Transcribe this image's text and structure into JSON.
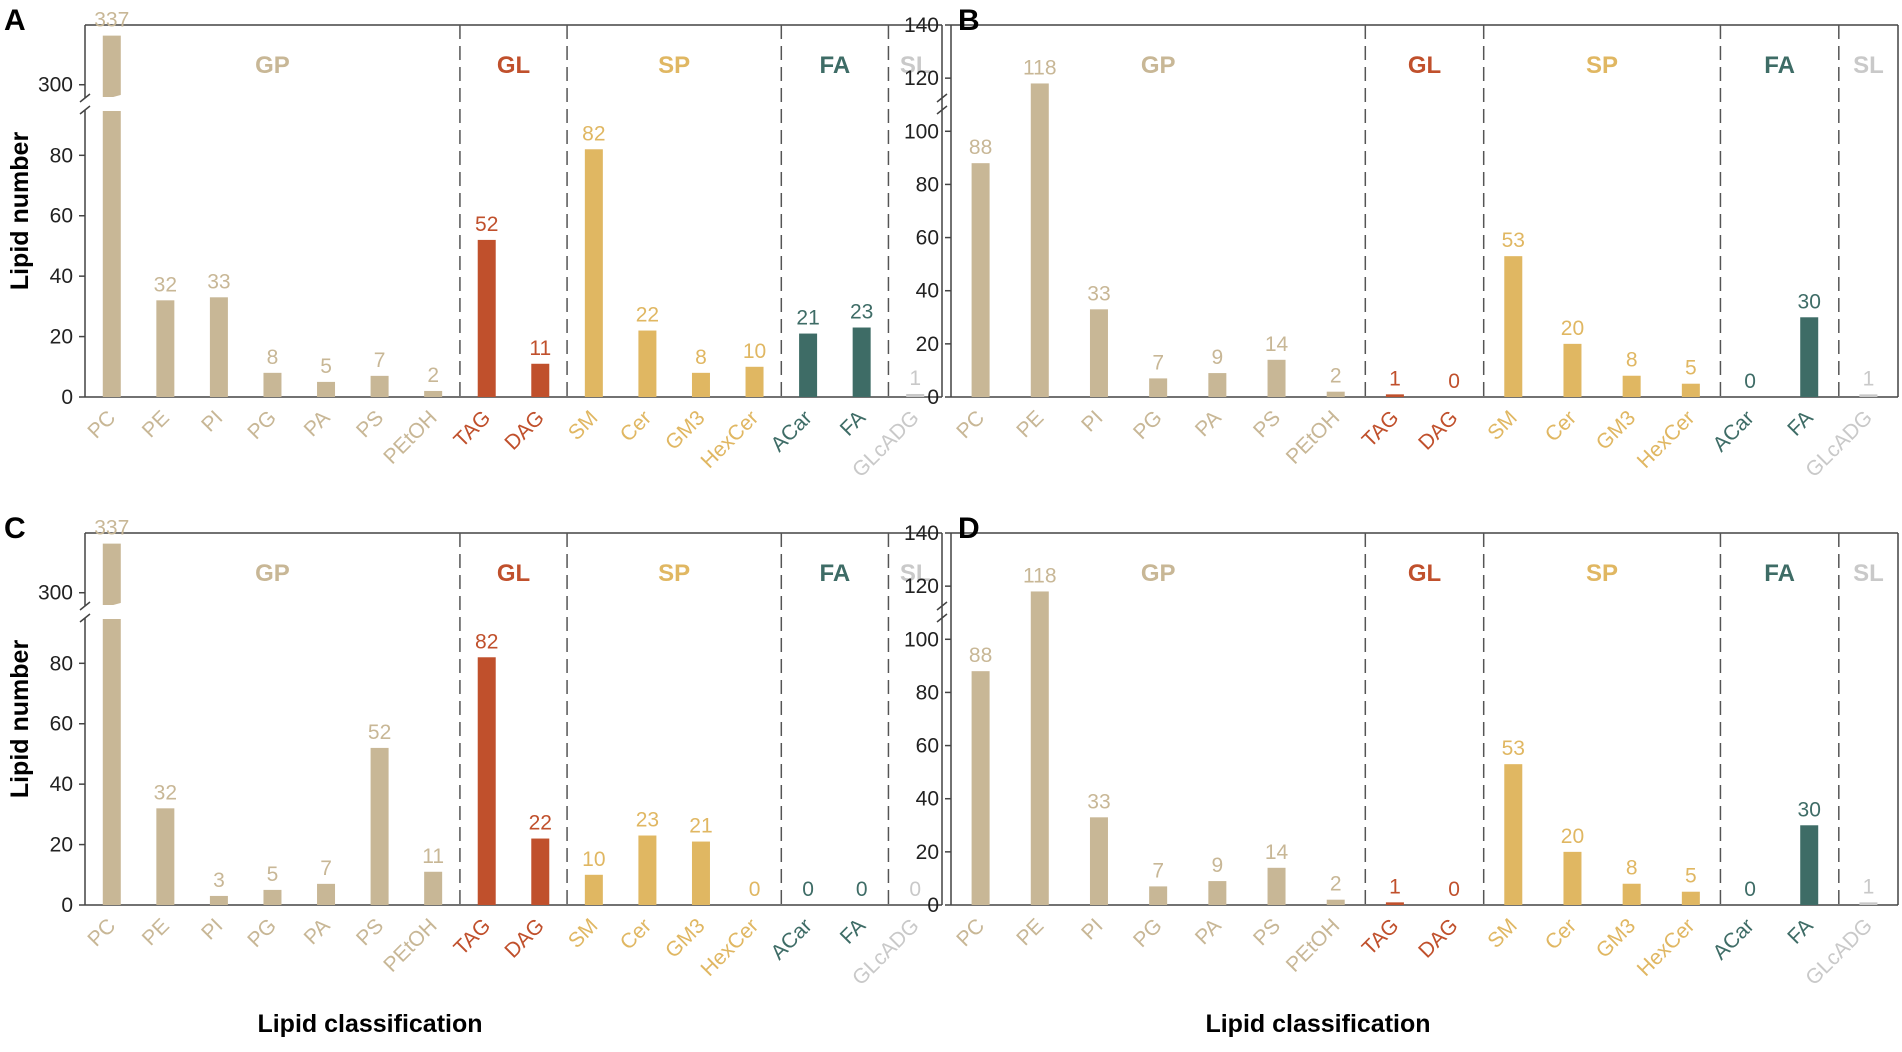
{
  "colors": {
    "GP": "#c8b796",
    "GL": "#c0502c",
    "SP": "#e0b762",
    "FA": "#3e6c66",
    "SL": "#c9c9c9",
    "axis": "#444444",
    "divider": "#555555"
  },
  "x_axis_title": "Lipid classification",
  "chart_data": [
    {
      "panel": "A",
      "type": "bar",
      "ylabel": "Lipid number",
      "broken_axis": true,
      "ylim_lower": [
        0,
        95
      ],
      "ylim_upper": [
        290,
        345
      ],
      "yticks": [
        0,
        20,
        40,
        60,
        80,
        300
      ],
      "groups": [
        {
          "name": "GP",
          "categories": [
            "PC",
            "PE",
            "PI",
            "PG",
            "PA",
            "PS",
            "PEtOH"
          ],
          "values": [
            337,
            32,
            33,
            8,
            5,
            7,
            2
          ]
        },
        {
          "name": "GL",
          "categories": [
            "TAG",
            "DAG"
          ],
          "values": [
            52,
            11
          ]
        },
        {
          "name": "SP",
          "categories": [
            "SM",
            "Cer",
            "GM3",
            "HexCer"
          ],
          "values": [
            82,
            22,
            8,
            10
          ]
        },
        {
          "name": "FA",
          "categories": [
            "ACar",
            "FA"
          ],
          "values": [
            21,
            23
          ]
        },
        {
          "name": "SL",
          "categories": [
            "GLcADG"
          ],
          "values": [
            1
          ]
        }
      ]
    },
    {
      "panel": "B",
      "type": "bar",
      "ylabel": "",
      "broken_axis": false,
      "ylim": [
        0,
        140
      ],
      "yticks": [
        0,
        20,
        40,
        60,
        80,
        100,
        120,
        140
      ],
      "groups": [
        {
          "name": "GP",
          "categories": [
            "PC",
            "PE",
            "PI",
            "PG",
            "PA",
            "PS",
            "PEtOH"
          ],
          "values": [
            88,
            118,
            33,
            7,
            9,
            14,
            2
          ]
        },
        {
          "name": "GL",
          "categories": [
            "TAG",
            "DAG"
          ],
          "values": [
            1,
            0
          ]
        },
        {
          "name": "SP",
          "categories": [
            "SM",
            "Cer",
            "GM3",
            "HexCer"
          ],
          "values": [
            53,
            20,
            8,
            5
          ]
        },
        {
          "name": "FA",
          "categories": [
            "ACar",
            "FA"
          ],
          "values": [
            0,
            30
          ]
        },
        {
          "name": "SL",
          "categories": [
            "GLcADG"
          ],
          "values": [
            1
          ]
        }
      ]
    },
    {
      "panel": "C",
      "type": "bar",
      "ylabel": "Lipid number",
      "broken_axis": true,
      "ylim_lower": [
        0,
        95
      ],
      "ylim_upper": [
        290,
        345
      ],
      "yticks": [
        0,
        20,
        40,
        60,
        80,
        300
      ],
      "groups": [
        {
          "name": "GP",
          "categories": [
            "PC",
            "PE",
            "PI",
            "PG",
            "PA",
            "PS",
            "PEtOH"
          ],
          "values": [
            337,
            32,
            3,
            5,
            7,
            52,
            11
          ]
        },
        {
          "name": "GL",
          "categories": [
            "TAG",
            "DAG"
          ],
          "values": [
            82,
            22
          ]
        },
        {
          "name": "SP",
          "categories": [
            "SM",
            "Cer",
            "GM3",
            "HexCer"
          ],
          "values": [
            10,
            23,
            21,
            0
          ]
        },
        {
          "name": "FA",
          "categories": [
            "ACar",
            "FA"
          ],
          "values": [
            0,
            0
          ]
        },
        {
          "name": "SL",
          "categories": [
            "GLcADG"
          ],
          "values": [
            0
          ]
        }
      ]
    },
    {
      "panel": "D",
      "type": "bar",
      "ylabel": "",
      "broken_axis": false,
      "ylim": [
        0,
        140
      ],
      "yticks": [
        0,
        20,
        40,
        60,
        80,
        100,
        120,
        140
      ],
      "groups": [
        {
          "name": "GP",
          "categories": [
            "PC",
            "PE",
            "PI",
            "PG",
            "PA",
            "PS",
            "PEtOH"
          ],
          "values": [
            88,
            118,
            33,
            7,
            9,
            14,
            2
          ]
        },
        {
          "name": "GL",
          "categories": [
            "TAG",
            "DAG"
          ],
          "values": [
            1,
            0
          ]
        },
        {
          "name": "SP",
          "categories": [
            "SM",
            "Cer",
            "GM3",
            "HexCer"
          ],
          "values": [
            53,
            20,
            8,
            5
          ]
        },
        {
          "name": "FA",
          "categories": [
            "ACar",
            "FA"
          ],
          "values": [
            0,
            30
          ]
        },
        {
          "name": "SL",
          "categories": [
            "GLcADG"
          ],
          "values": [
            1
          ]
        }
      ]
    }
  ]
}
